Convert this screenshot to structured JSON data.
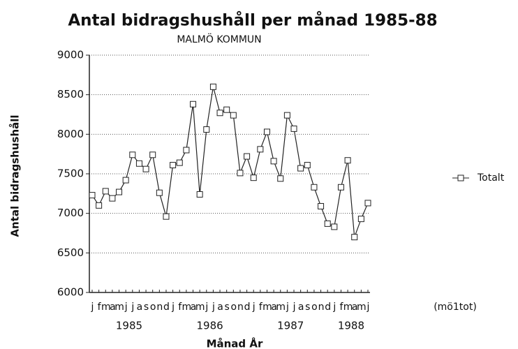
{
  "chart_data": {
    "type": "line",
    "title": "Antal bidragshushåll per månad 1985-88",
    "subtitle": "MALMÖ KOMMUN",
    "ylabel": "Antal bidragshushåll",
    "xlabel": "Månad År",
    "annotation": "(mö1tot)",
    "categories": [
      "j",
      "f",
      "m",
      "a",
      "m",
      "j",
      "j",
      "a",
      "s",
      "o",
      "n",
      "d",
      "j",
      "f",
      "m",
      "a",
      "m",
      "j",
      "j",
      "a",
      "s",
      "o",
      "n",
      "d",
      "j",
      "f",
      "m",
      "a",
      "m",
      "j",
      "j",
      "a",
      "s",
      "o",
      "n",
      "d",
      "j",
      "f",
      "m",
      "a",
      "m",
      "j"
    ],
    "year_labels": [
      "1985",
      "1986",
      "1987",
      "1988"
    ],
    "series": [
      {
        "name": "Totalt",
        "color": "#222222",
        "values": [
          7230,
          7100,
          7280,
          7190,
          7270,
          7420,
          7740,
          7630,
          7560,
          7740,
          7260,
          6960,
          7610,
          7640,
          7800,
          8380,
          7240,
          8060,
          8600,
          8270,
          8310,
          8240,
          7510,
          7720,
          7450,
          7810,
          8030,
          7660,
          7440,
          8240,
          8070,
          7570,
          7610,
          7330,
          7090,
          6870,
          6830,
          7330,
          7670,
          6700,
          6930,
          7130
        ]
      }
    ],
    "ylim": [
      6000,
      9000
    ],
    "yticks": [
      6000,
      6500,
      7000,
      7500,
      8000,
      8500,
      9000
    ],
    "grid": true,
    "legend": "right"
  }
}
